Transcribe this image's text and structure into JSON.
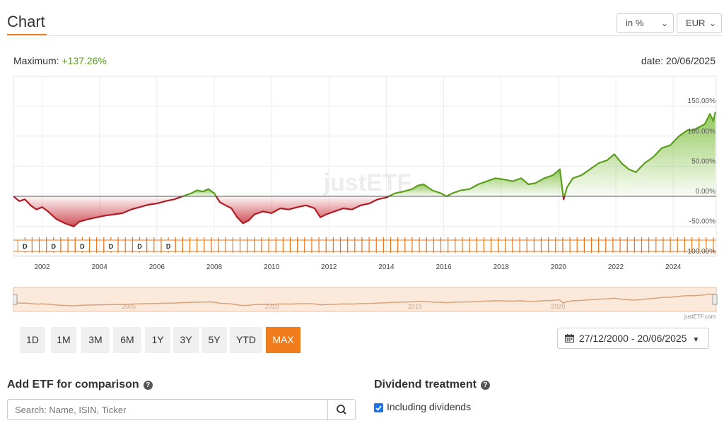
{
  "header": {
    "title": "Chart",
    "unit_select": "in %",
    "currency_select": "EUR"
  },
  "summary": {
    "maximum_label": "Maximum:",
    "maximum_value": "+137.26%",
    "date_label": "date: 20/06/2025"
  },
  "watermark": "justETF",
  "navigator": {
    "labels": [
      "2005",
      "2010",
      "2015",
      "2020"
    ],
    "credit": "justETF.com"
  },
  "range_buttons": [
    {
      "label": "1D",
      "active": false
    },
    {
      "label": "1M",
      "active": false
    },
    {
      "label": "3M",
      "active": false
    },
    {
      "label": "6M",
      "active": false
    },
    {
      "label": "1Y",
      "active": false
    },
    {
      "label": "3Y",
      "active": false
    },
    {
      "label": "5Y",
      "active": false
    },
    {
      "label": "YTD",
      "active": false
    },
    {
      "label": "MAX",
      "active": true
    }
  ],
  "date_range": "27/12/2000 - 20/06/2025",
  "comparison": {
    "title": "Add ETF for comparison",
    "search_placeholder": "Search: Name, ISIN, Ticker"
  },
  "dividends": {
    "title": "Dividend treatment",
    "option_label": "Including dividends",
    "checked": true
  },
  "colors": {
    "accent": "#f07c1b",
    "positive_line": "#5b9e1c",
    "negative_line": "#b01c24",
    "dividend_flag": "#e8741a"
  },
  "icons": [
    "chevron-down-icon",
    "calendar-icon",
    "caret-down-icon",
    "help-icon",
    "search-icon",
    "checkbox-icon"
  ],
  "chart_data": {
    "type": "area",
    "x_ticks": [
      "2002",
      "2004",
      "2006",
      "2008",
      "2010",
      "2012",
      "2014",
      "2016",
      "2018",
      "2020",
      "2022",
      "2024"
    ],
    "y_ticks": [
      "150.00%",
      "100.00%",
      "50.00%",
      "0.00%",
      "-50.00%",
      "-100.00%"
    ],
    "ylim": [
      -100,
      170
    ],
    "xlim": [
      2001.0,
      2025.5
    ],
    "grid": true,
    "dividend_marker": "D",
    "dividend_years": [
      2001.4,
      2002.4,
      2003.4,
      2004.4,
      2005.4,
      2006.4
    ],
    "series": [
      {
        "x": [
          2001.0,
          2001.2,
          2001.4,
          2001.6,
          2001.8,
          2002.0,
          2002.2,
          2002.5,
          2002.8,
          2003.1,
          2003.3,
          2003.6,
          2003.9,
          2004.2,
          2004.5,
          2004.8,
          2005.1,
          2005.4,
          2005.7,
          2006.0,
          2006.3,
          2006.6,
          2006.9,
          2007.2,
          2007.4,
          2007.6,
          2007.8,
          2008.0,
          2008.2,
          2008.4,
          2008.6,
          2008.8,
          2009.0,
          2009.2,
          2009.4,
          2009.7,
          2010.0,
          2010.3,
          2010.6,
          2010.9,
          2011.2,
          2011.5,
          2011.7,
          2011.9,
          2012.2,
          2012.5,
          2012.8,
          2013.1,
          2013.4,
          2013.7,
          2014.0,
          2014.3,
          2014.6,
          2014.9,
          2015.1,
          2015.3,
          2015.6,
          2015.9,
          2016.1,
          2016.3,
          2016.6,
          2016.9,
          2017.2,
          2017.5,
          2017.8,
          2018.1,
          2018.4,
          2018.7,
          2018.95,
          2019.2,
          2019.5,
          2019.8,
          2020.05,
          2020.18,
          2020.3,
          2020.5,
          2020.8,
          2021.1,
          2021.4,
          2021.7,
          2021.95,
          2022.2,
          2022.45,
          2022.7,
          2023.0,
          2023.3,
          2023.6,
          2023.9,
          2024.2,
          2024.5,
          2024.7,
          2024.9,
          2025.1,
          2025.28,
          2025.4,
          2025.47
        ],
        "y": [
          0,
          -8,
          -5,
          -15,
          -22,
          -18,
          -25,
          -38,
          -45,
          -50,
          -42,
          -38,
          -35,
          -32,
          -30,
          -28,
          -22,
          -18,
          -14,
          -12,
          -8,
          -5,
          0,
          5,
          10,
          8,
          12,
          5,
          -10,
          -15,
          -20,
          -35,
          -45,
          -40,
          -30,
          -25,
          -28,
          -20,
          -22,
          -18,
          -15,
          -20,
          -35,
          -30,
          -25,
          -20,
          -22,
          -15,
          -12,
          -5,
          -2,
          5,
          8,
          12,
          18,
          20,
          10,
          5,
          0,
          5,
          10,
          12,
          20,
          25,
          30,
          28,
          25,
          30,
          20,
          22,
          30,
          35,
          45,
          -5,
          15,
          30,
          35,
          45,
          55,
          60,
          70,
          55,
          45,
          40,
          55,
          65,
          80,
          85,
          100,
          110,
          110,
          115,
          120,
          137,
          125,
          140
        ]
      }
    ]
  }
}
